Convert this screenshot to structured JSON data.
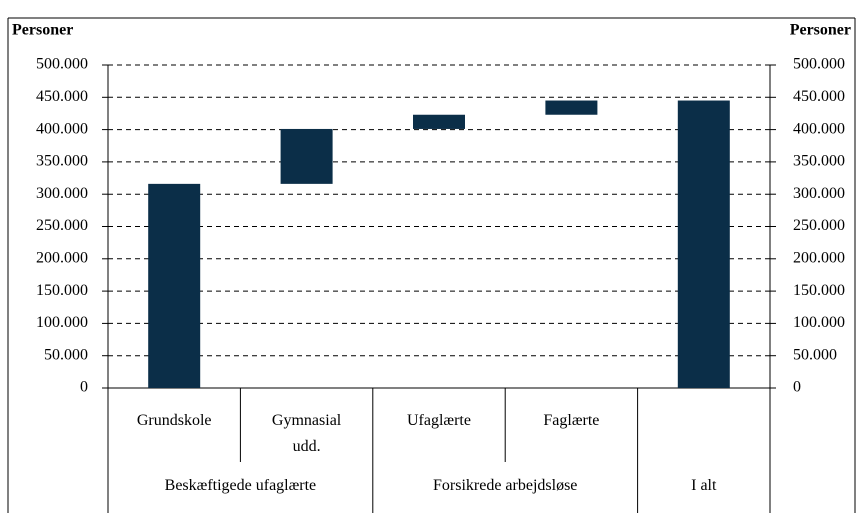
{
  "chart_data": {
    "type": "waterfall",
    "ylabel": "Personer",
    "y2label": "Personer",
    "categories": [
      "Grundskole",
      "Gymnasial udd.",
      "Ufaglærte",
      "Faglærte",
      null
    ],
    "values": [
      316000,
      85000,
      22000,
      22000,
      445000
    ],
    "total": [
      false,
      false,
      false,
      false,
      true
    ],
    "groups": [
      {
        "label": "Beskæftigede ufaglærte",
        "size": 2
      },
      {
        "label": "Forsikrede arbejdsløse",
        "size": 2
      },
      {
        "label": "I alt",
        "size": 1
      }
    ],
    "color": "#0b2e48",
    "ylim": [
      0,
      500000
    ],
    "yticks": [
      0,
      {
        "value": 50000,
        "label": "50.000"
      },
      {
        "value": 100000,
        "label": "100.000"
      },
      {
        "value": 150000,
        "label": "150.000"
      },
      {
        "value": 200000,
        "label": "200.000"
      },
      {
        "value": 250000,
        "label": "250.000"
      },
      {
        "value": 300000,
        "label": "300.000"
      },
      {
        "value": 350000,
        "label": "350.000"
      },
      {
        "value": 400000,
        "label": "400.000"
      },
      {
        "value": 450000,
        "label": "450.000"
      },
      {
        "value": 500000,
        "label": "500.000"
      }
    ],
    "y2lim": [
      0,
      500000
    ],
    "y2ticks": [
      0,
      {
        "value": 50000,
        "label": "50.000"
      },
      {
        "value": 100000,
        "label": "100.000"
      },
      {
        "value": 150000,
        "label": "150.000"
      },
      {
        "value": 200000,
        "label": "200.000"
      },
      {
        "value": 250000,
        "label": "250.000"
      },
      {
        "value": 300000,
        "label": "300.000"
      },
      {
        "value": 350000,
        "label": "350.000"
      },
      {
        "value": 400000,
        "label": "400.000"
      },
      {
        "value": 450000,
        "label": "450.000"
      },
      {
        "value": 500000,
        "label": "500.000"
      }
    ],
    "grid": true
  }
}
